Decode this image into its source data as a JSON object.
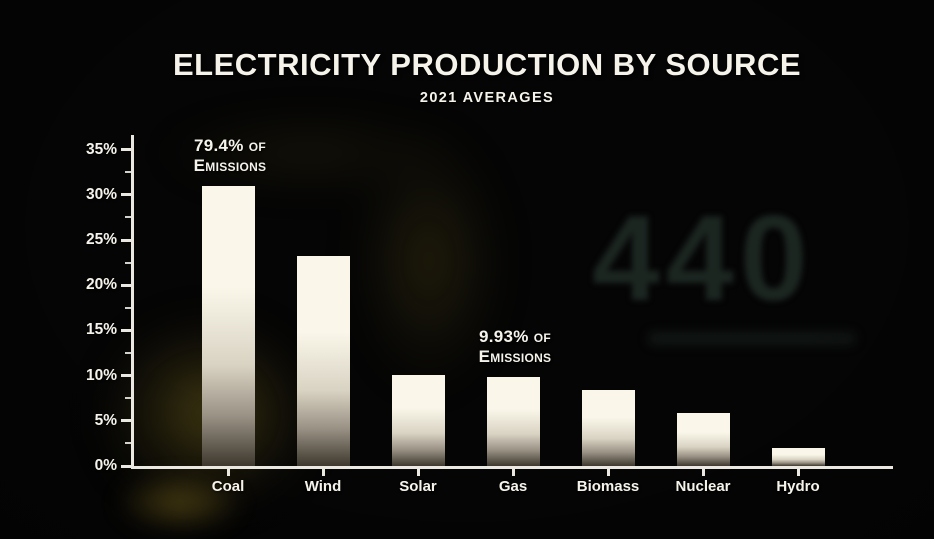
{
  "chart_data": {
    "type": "bar",
    "title": "ELECTRICITY PRODUCTION BY SOURCE",
    "subtitle": "2021 AVERAGES",
    "categories": [
      "Coal",
      "Wind",
      "Solar",
      "Gas",
      "Biomass",
      "Nuclear",
      "Hydro"
    ],
    "values": [
      31,
      23.2,
      10.1,
      9.9,
      8.4,
      5.9,
      2
    ],
    "unit": "%",
    "xlabel": "",
    "ylabel": "",
    "ylim": [
      0,
      35
    ],
    "y_tick_step": 5,
    "y_minor_tick_step": 2.5,
    "y_tick_labels": [
      "0%",
      "5%",
      "10%",
      "15%",
      "20%",
      "25%",
      "30%",
      "35%"
    ],
    "grid": false,
    "legend": null,
    "annotations": [
      {
        "category": "Coal",
        "lines": [
          "79.4% of",
          "Emissions"
        ]
      },
      {
        "category": "Gas",
        "lines": [
          "9.93% of",
          "Emissions"
        ]
      }
    ]
  },
  "background": {
    "watermark": "440"
  },
  "colors": {
    "background": "#050505",
    "text": "#f6f3eb",
    "axis": "#eae8e1",
    "bar_top": "#faf7ea",
    "bar_mid": "#d9d3c3",
    "bar_bottom": "#3e382e",
    "map_glow": "#7a6a1e",
    "watermark": "#1c2621"
  }
}
